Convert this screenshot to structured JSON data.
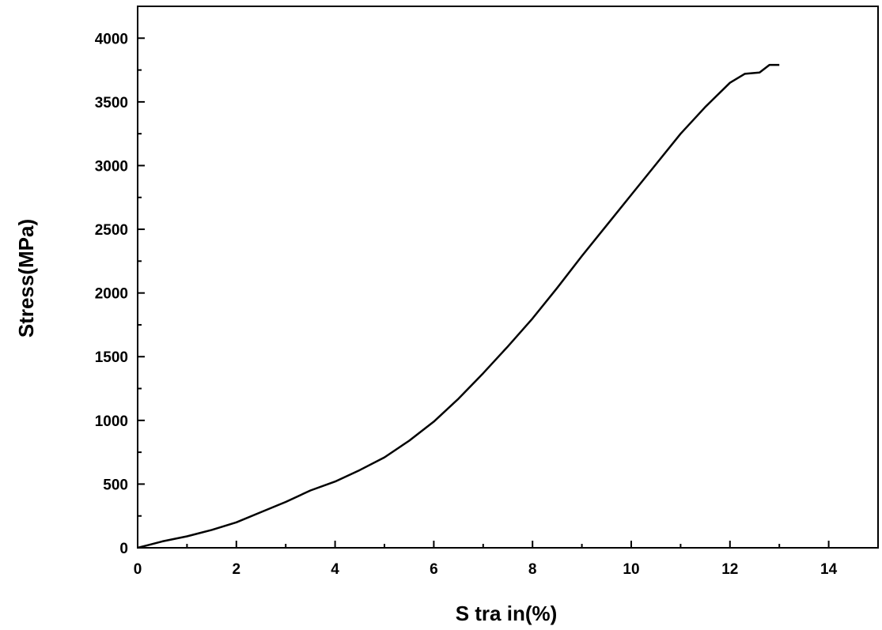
{
  "chart_data": {
    "type": "line",
    "title": "",
    "xlabel": "S tra in(%)",
    "ylabel": "Stress(MPa)",
    "xlim": [
      0,
      15
    ],
    "ylim": [
      0,
      4250
    ],
    "x_ticks": [
      0,
      2,
      4,
      6,
      8,
      10,
      12,
      14
    ],
    "y_ticks": [
      0,
      500,
      1000,
      1500,
      2000,
      2500,
      3000,
      3500,
      4000
    ],
    "grid": false,
    "legend": "none",
    "line_color": "#000000",
    "series": [
      {
        "x": [
          0.0,
          0.2,
          0.5,
          1.0,
          1.5,
          2.0,
          2.5,
          3.0,
          3.5,
          4.0,
          4.5,
          5.0,
          5.5,
          6.0,
          6.5,
          7.0,
          7.5,
          8.0,
          8.5,
          9.0,
          9.5,
          10.0,
          10.5,
          11.0,
          11.5,
          12.0,
          12.3,
          12.6,
          12.8,
          13.0
        ],
        "y": [
          0,
          20,
          50,
          90,
          140,
          200,
          280,
          360,
          450,
          520,
          610,
          710,
          840,
          990,
          1170,
          1370,
          1580,
          1800,
          2040,
          2290,
          2530,
          2770,
          3010,
          3250,
          3460,
          3650,
          3720,
          3730,
          3790,
          3790
        ]
      }
    ]
  }
}
